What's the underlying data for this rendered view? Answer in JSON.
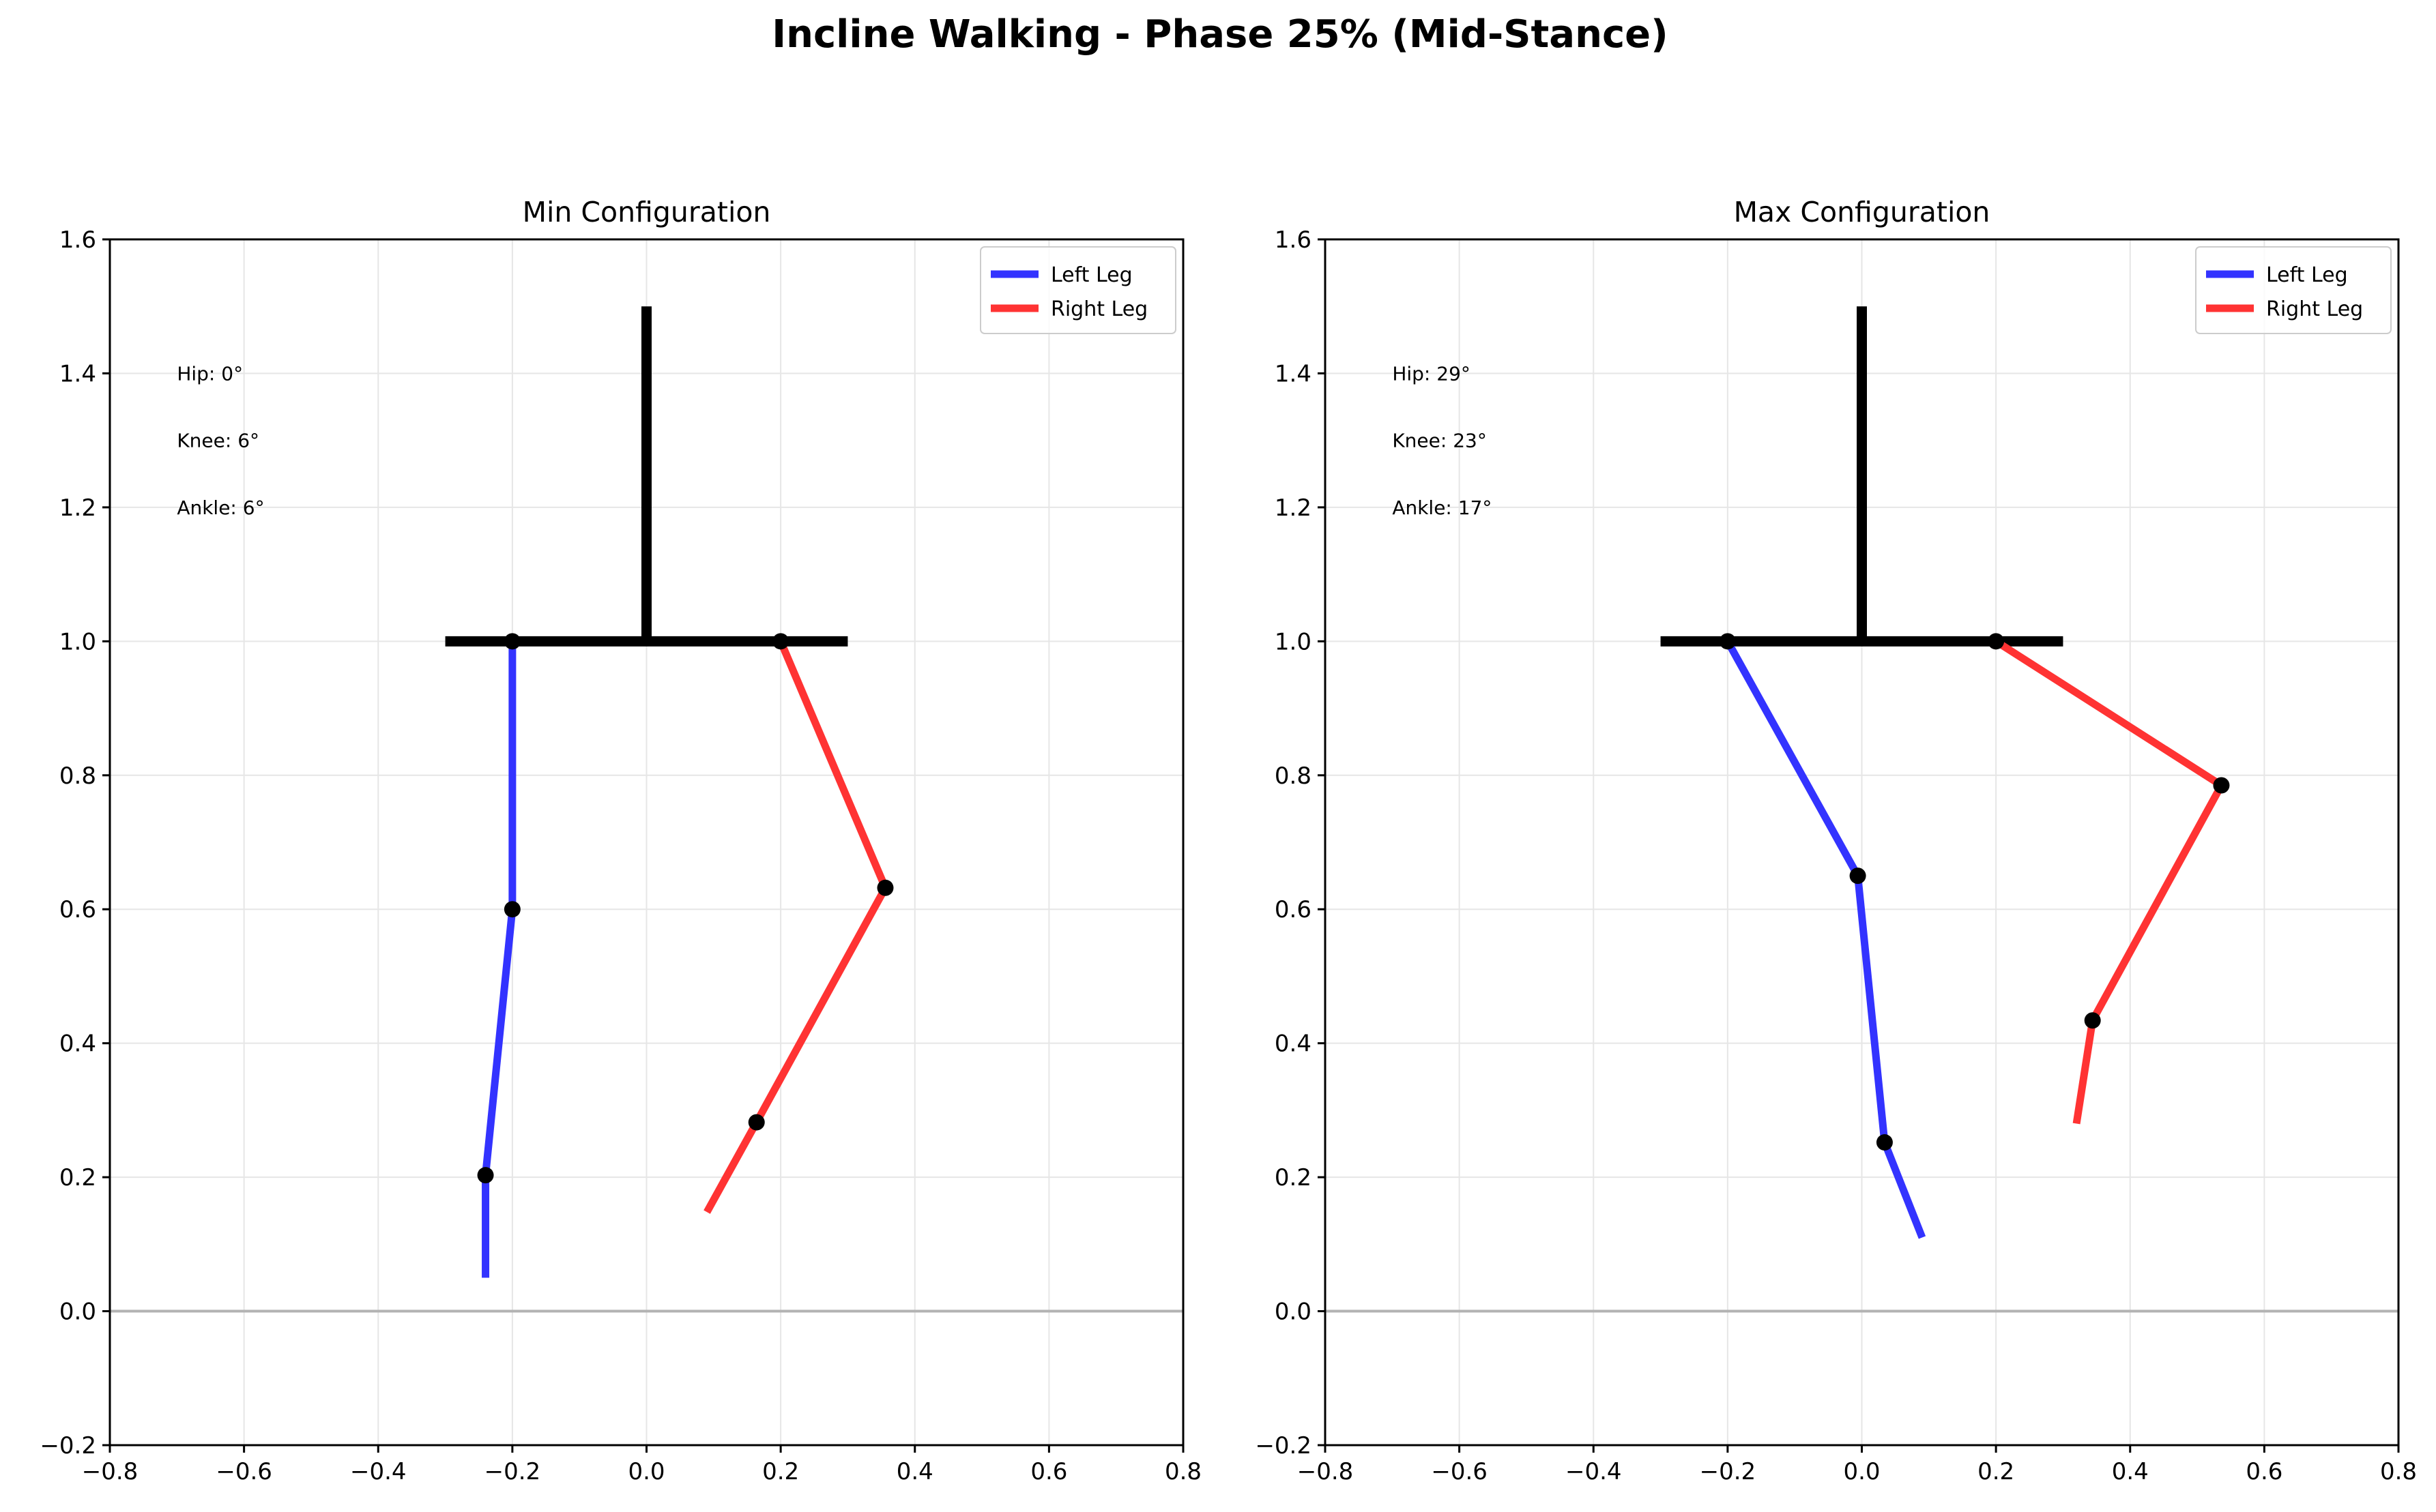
{
  "figure": {
    "title": "Incline Walking - Phase 25% (Mid-Stance)"
  },
  "chart_data": [
    {
      "type": "line",
      "title": "Min Configuration",
      "xlim": [
        -0.8,
        0.8
      ],
      "ylim": [
        -0.2,
        1.6
      ],
      "xticks": [
        -0.8,
        -0.6,
        -0.4,
        -0.2,
        0.0,
        0.2,
        0.4,
        0.6,
        0.8
      ],
      "yticks": [
        -0.2,
        0.0,
        0.2,
        0.4,
        0.6,
        0.8,
        1.0,
        1.2,
        1.4,
        1.6
      ],
      "xtick_labels": [
        "−0.8",
        "−0.6",
        "−0.4",
        "−0.2",
        "0.0",
        "0.2",
        "0.4",
        "0.6",
        "0.8"
      ],
      "ytick_labels": [
        "−0.2",
        "0.0",
        "0.2",
        "0.4",
        "0.6",
        "0.8",
        "1.0",
        "1.2",
        "1.4",
        "1.6"
      ],
      "grid": true,
      "ground_y": 0.0,
      "legend": {
        "placement": "top-right",
        "entries": [
          "Left Leg",
          "Right Leg"
        ]
      },
      "annotations": [
        "Hip: 0°",
        "Knee: 6°",
        "Ankle: 6°"
      ],
      "body": {
        "trunk": [
          [
            0.0,
            1.0
          ],
          [
            0.0,
            1.5
          ]
        ],
        "pelvis": [
          [
            -0.3,
            1.0
          ],
          [
            0.3,
            1.0
          ]
        ]
      },
      "series": [
        {
          "name": "Left Leg",
          "color": "#3333ff",
          "x": [
            -0.2,
            -0.2,
            -0.24,
            -0.24
          ],
          "y": [
            1.0,
            0.6,
            0.203,
            0.05
          ]
        },
        {
          "name": "Right Leg",
          "color": "#ff3333",
          "x": [
            0.2,
            0.356,
            0.164,
            0.09
          ],
          "y": [
            1.0,
            0.632,
            0.282,
            0.148
          ]
        }
      ]
    },
    {
      "type": "line",
      "title": "Max Configuration",
      "xlim": [
        -0.8,
        0.8
      ],
      "ylim": [
        -0.2,
        1.6
      ],
      "xticks": [
        -0.8,
        -0.6,
        -0.4,
        -0.2,
        0.0,
        0.2,
        0.4,
        0.6,
        0.8
      ],
      "yticks": [
        -0.2,
        0.0,
        0.2,
        0.4,
        0.6,
        0.8,
        1.0,
        1.2,
        1.4,
        1.6
      ],
      "xtick_labels": [
        "−0.8",
        "−0.6",
        "−0.4",
        "−0.2",
        "0.0",
        "0.2",
        "0.4",
        "0.6",
        "0.8"
      ],
      "ytick_labels": [
        "−0.2",
        "0.0",
        "0.2",
        "0.4",
        "0.6",
        "0.8",
        "1.0",
        "1.2",
        "1.4",
        "1.6"
      ],
      "grid": true,
      "ground_y": 0.0,
      "legend": {
        "placement": "top-right",
        "entries": [
          "Left Leg",
          "Right Leg"
        ]
      },
      "annotations": [
        "Hip: 29°",
        "Knee: 23°",
        "Ankle: 17°"
      ],
      "body": {
        "trunk": [
          [
            0.0,
            1.0
          ],
          [
            0.0,
            1.5
          ]
        ],
        "pelvis": [
          [
            -0.3,
            1.0
          ],
          [
            0.3,
            1.0
          ]
        ]
      },
      "series": [
        {
          "name": "Left Leg",
          "color": "#3333ff",
          "x": [
            -0.2,
            -0.006,
            0.034,
            0.09
          ],
          "y": [
            1.0,
            0.65,
            0.252,
            0.11
          ]
        },
        {
          "name": "Right Leg",
          "color": "#ff3333",
          "x": [
            0.2,
            0.536,
            0.344,
            0.32
          ],
          "y": [
            1.0,
            0.785,
            0.434,
            0.28
          ]
        }
      ]
    }
  ]
}
